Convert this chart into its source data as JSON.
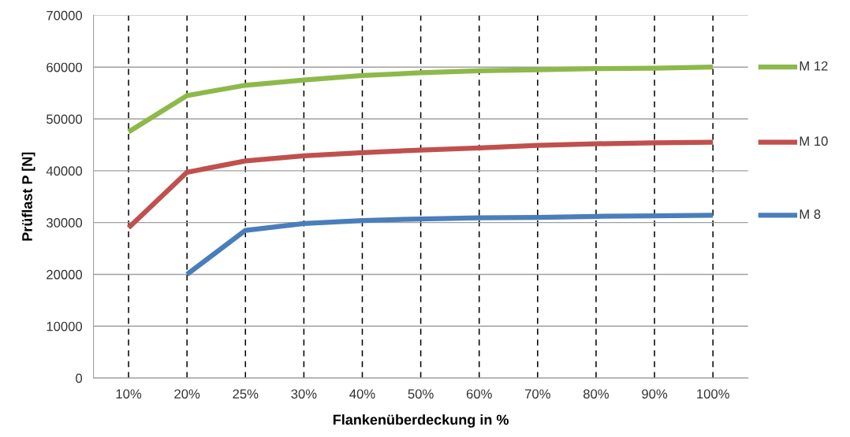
{
  "chart_data": {
    "type": "line",
    "xlabel": "Flankenüberdeckung in %",
    "ylabel": "Prüflast P [N]",
    "categories": [
      "10%",
      "20%",
      "25%",
      "30%",
      "40%",
      "50%",
      "60%",
      "70%",
      "80%",
      "90%",
      "100%"
    ],
    "series": [
      {
        "name": "M 12",
        "color": "#8db94a",
        "values": [
          47500,
          54500,
          56500,
          57500,
          58400,
          58900,
          59300,
          59500,
          59700,
          59800,
          60000
        ]
      },
      {
        "name": "M 10",
        "color": "#c0504d",
        "values": [
          29000,
          39700,
          41900,
          42900,
          43500,
          44000,
          44400,
          44900,
          45200,
          45400,
          45500
        ]
      },
      {
        "name": "M 8",
        "color": "#4a7ebb",
        "values": [
          null,
          20000,
          28500,
          29800,
          30400,
          30700,
          30900,
          31000,
          31200,
          31300,
          31400
        ]
      }
    ],
    "ylim": [
      0,
      70000
    ],
    "yticks": [
      0,
      10000,
      20000,
      30000,
      40000,
      50000,
      60000,
      70000
    ],
    "grid": true,
    "legend": "right",
    "marker": "none",
    "line_style": "solid"
  }
}
